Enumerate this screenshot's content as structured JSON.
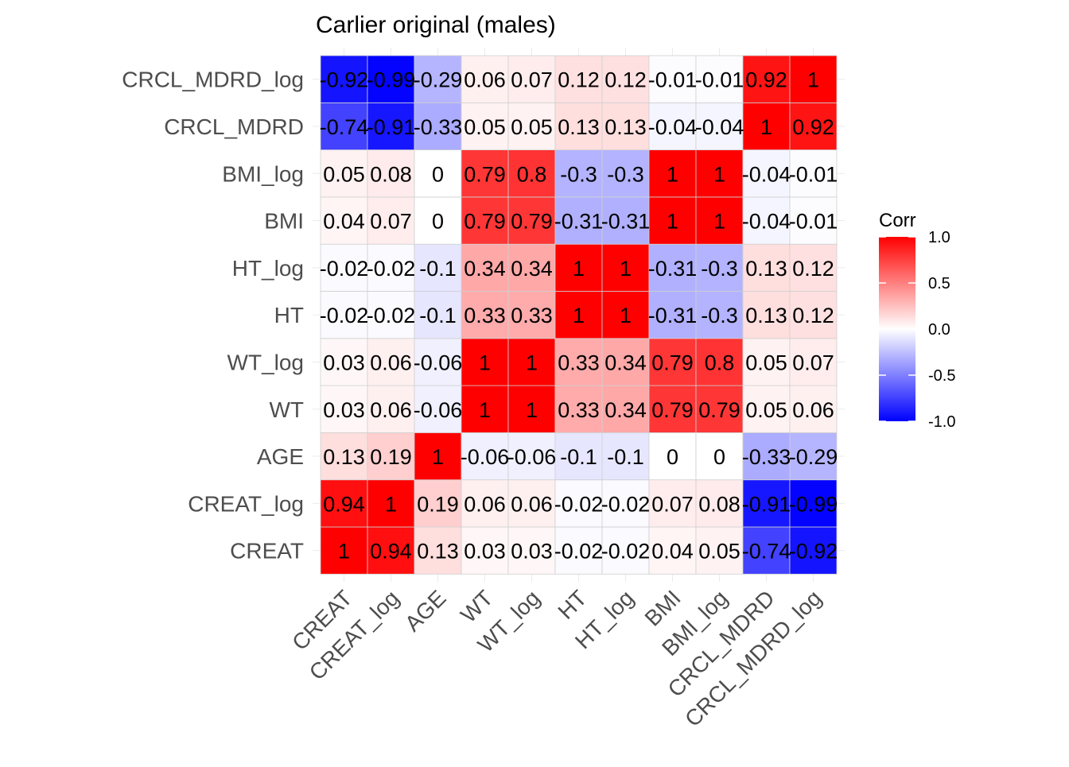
{
  "chart_data": {
    "type": "heatmap",
    "title": "Carlier original (males)",
    "xlabel": "",
    "ylabel": "",
    "variables": [
      "CREAT",
      "CREAT_log",
      "AGE",
      "WT",
      "WT_log",
      "HT",
      "HT_log",
      "BMI",
      "BMI_log",
      "CRCL_MDRD",
      "CRCL_MDRD_log"
    ],
    "matrix": [
      [
        1,
        0.94,
        0.13,
        0.03,
        0.03,
        -0.02,
        -0.02,
        0.04,
        0.05,
        -0.74,
        -0.92
      ],
      [
        0.94,
        1,
        0.19,
        0.06,
        0.06,
        -0.02,
        -0.02,
        0.07,
        0.08,
        -0.91,
        -0.99
      ],
      [
        0.13,
        0.19,
        1,
        -0.06,
        -0.06,
        -0.1,
        -0.1,
        0,
        0,
        -0.33,
        -0.29
      ],
      [
        0.03,
        0.06,
        -0.06,
        1,
        1,
        0.33,
        0.34,
        0.79,
        0.79,
        0.05,
        0.06
      ],
      [
        0.03,
        0.06,
        -0.06,
        1,
        1,
        0.33,
        0.34,
        0.79,
        0.8,
        0.05,
        0.07
      ],
      [
        -0.02,
        -0.02,
        -0.1,
        0.33,
        0.33,
        1,
        1,
        -0.31,
        -0.3,
        0.13,
        0.12
      ],
      [
        -0.02,
        -0.02,
        -0.1,
        0.34,
        0.34,
        1,
        1,
        -0.31,
        -0.3,
        0.13,
        0.12
      ],
      [
        0.04,
        0.07,
        0,
        0.79,
        0.79,
        -0.31,
        -0.31,
        1,
        1,
        -0.04,
        -0.01
      ],
      [
        0.05,
        0.08,
        0,
        0.79,
        0.8,
        -0.3,
        -0.3,
        1,
        1,
        -0.04,
        -0.01
      ],
      [
        -0.74,
        -0.91,
        -0.33,
        0.05,
        0.05,
        0.13,
        0.13,
        -0.04,
        -0.04,
        1,
        0.92
      ],
      [
        -0.92,
        -0.99,
        -0.29,
        0.06,
        0.07,
        0.12,
        0.12,
        -0.01,
        -0.01,
        0.92,
        1
      ]
    ],
    "color_scale": {
      "low": "#0000ff",
      "mid": "#ffffff",
      "high": "#ff0000",
      "limits": [
        -1,
        1
      ]
    },
    "legend": {
      "title": "Corr",
      "ticks": [
        1.0,
        0.5,
        0.0,
        -0.5,
        -1.0
      ],
      "tick_labels": [
        "1.0",
        "0.5",
        "0.0",
        "-0.5",
        "-1.0"
      ],
      "placement": "right"
    },
    "grid": true
  }
}
